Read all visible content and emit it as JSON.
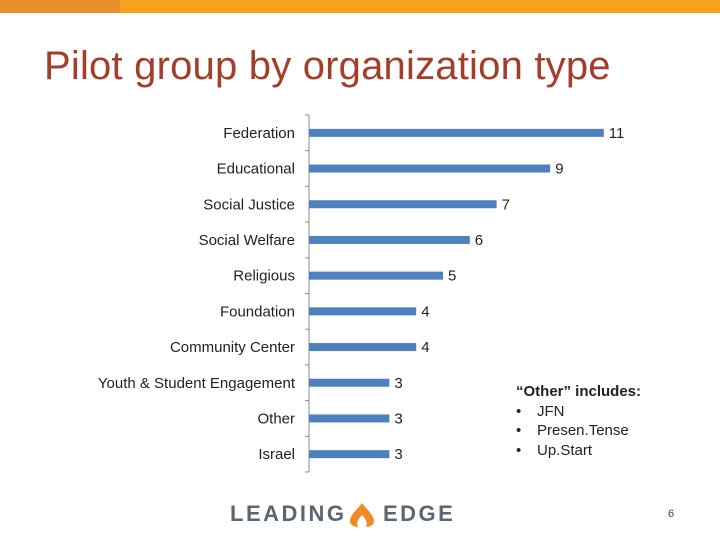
{
  "slide": {
    "title": "Pilot group by organization type",
    "page_number": "6"
  },
  "colors": {
    "title": "#a23e2a",
    "bar": "#4e81bd",
    "top_bar_left": "#e8912a",
    "top_bar_right": "#f5a31f",
    "logo_flame": "#f08a24"
  },
  "note": {
    "heading": "“Other” includes:",
    "items": [
      "JFN",
      "Presen.Tense",
      "Up.Start"
    ]
  },
  "logo": {
    "word1": "LEADING",
    "word2": "EDGE",
    "icon": "flame-icon"
  },
  "chart_data": {
    "type": "bar",
    "orientation": "horizontal",
    "categories": [
      "Federation",
      "Educational",
      "Social Justice",
      "Social Welfare",
      "Religious",
      "Foundation",
      "Community Center",
      "Youth & Student Engagement",
      "Other",
      "Israel"
    ],
    "values": [
      11,
      9,
      7,
      6,
      5,
      4,
      4,
      3,
      3,
      3
    ],
    "title": "",
    "xlabel": "",
    "ylabel": "",
    "xlim": [
      0,
      11
    ],
    "grid": false,
    "legend": "none",
    "data_labels": true
  }
}
